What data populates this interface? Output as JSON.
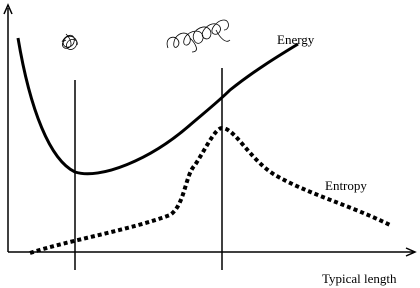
{
  "labels": {
    "energy": "Energy",
    "entropy": "Entropy",
    "x_axis": "Typical length"
  }
}
